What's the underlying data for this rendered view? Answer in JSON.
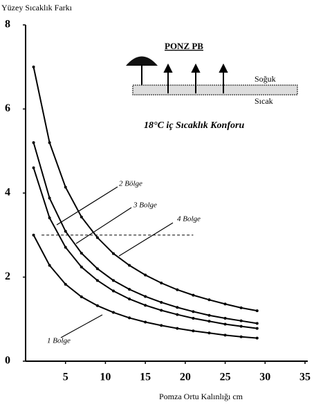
{
  "chart_data": {
    "type": "line",
    "y_label": "Yüzey Sıcaklık Farkı",
    "x_label": "Pomza Ortu Kalınlığı cm",
    "inset_title": "PONZ PB",
    "inset_cold": "Soğuk",
    "inset_hot": "Sıcak",
    "annotation": "18°C iç Sıcaklık Konforu",
    "reference_y": 3,
    "x": [
      1,
      3,
      5,
      7,
      9,
      11,
      13,
      15,
      17,
      19,
      21,
      23,
      25,
      27,
      29
    ],
    "series": [
      {
        "name": "1 Bolge",
        "color": "#000000",
        "values": [
          3.0,
          2.28,
          1.83,
          1.53,
          1.32,
          1.16,
          1.03,
          0.93,
          0.85,
          0.78,
          0.72,
          0.67,
          0.62,
          0.58,
          0.55
        ]
      },
      {
        "name": "2 Bölge",
        "color": "#000000",
        "values": [
          4.6,
          3.41,
          2.71,
          2.24,
          1.92,
          1.67,
          1.48,
          1.33,
          1.21,
          1.11,
          1.02,
          0.95,
          0.88,
          0.83,
          0.78
        ]
      },
      {
        "name": "3 Bolge",
        "color": "#000000",
        "values": [
          5.2,
          3.88,
          3.09,
          2.57,
          2.2,
          1.92,
          1.71,
          1.54,
          1.4,
          1.28,
          1.18,
          1.09,
          1.02,
          0.96,
          0.9
        ]
      },
      {
        "name": "4 Bolge",
        "color": "#000000",
        "values": [
          7.0,
          5.2,
          4.14,
          3.43,
          2.94,
          2.56,
          2.28,
          2.05,
          1.86,
          1.7,
          1.57,
          1.46,
          1.36,
          1.27,
          1.2
        ]
      }
    ],
    "xlim": [
      0,
      35
    ],
    "ylim": [
      0,
      8
    ],
    "xticks": [
      5,
      10,
      15,
      20,
      25,
      30,
      35
    ],
    "yticks": [
      0,
      2,
      4,
      6,
      8
    ]
  }
}
